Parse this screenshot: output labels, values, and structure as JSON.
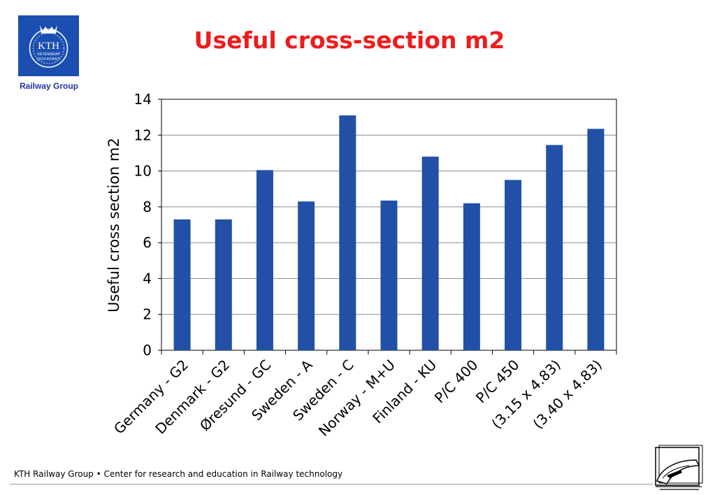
{
  "header": {
    "title": "Useful cross-section m2",
    "logo_text_main": "KTH",
    "logo_text_sub1": "VETENSKAP",
    "logo_text_sub2": "OCH KONST",
    "logo_caption": "Railway Group"
  },
  "footer": {
    "text": "KTH Railway Group • Center for research and education in Railway technology",
    "icon": "train-icon"
  },
  "colors": {
    "title": "#ee1c1c",
    "bar": "#2150a6",
    "logo_bg": "#1a4fb0",
    "caption": "#2433a8"
  },
  "chart_data": {
    "type": "bar",
    "title": "",
    "xlabel": "",
    "ylabel": "Useful cross section m2",
    "ylim": [
      0,
      14
    ],
    "yticks": [
      0,
      2,
      4,
      6,
      8,
      10,
      12,
      14
    ],
    "grid": true,
    "legend": "none",
    "categories": [
      "Germany - G2",
      "Denmark - G2",
      "Øresund - GC",
      "Sweden - A",
      "Sweden - C",
      "Norway - M+U",
      "Finland - KU",
      "P/C 400",
      "P/C 450",
      "(3.15 x 4.83)",
      "(3.40 x 4.83)"
    ],
    "values": [
      7.3,
      7.3,
      10.05,
      8.3,
      13.1,
      8.35,
      10.8,
      8.2,
      9.5,
      11.45,
      12.35
    ]
  }
}
